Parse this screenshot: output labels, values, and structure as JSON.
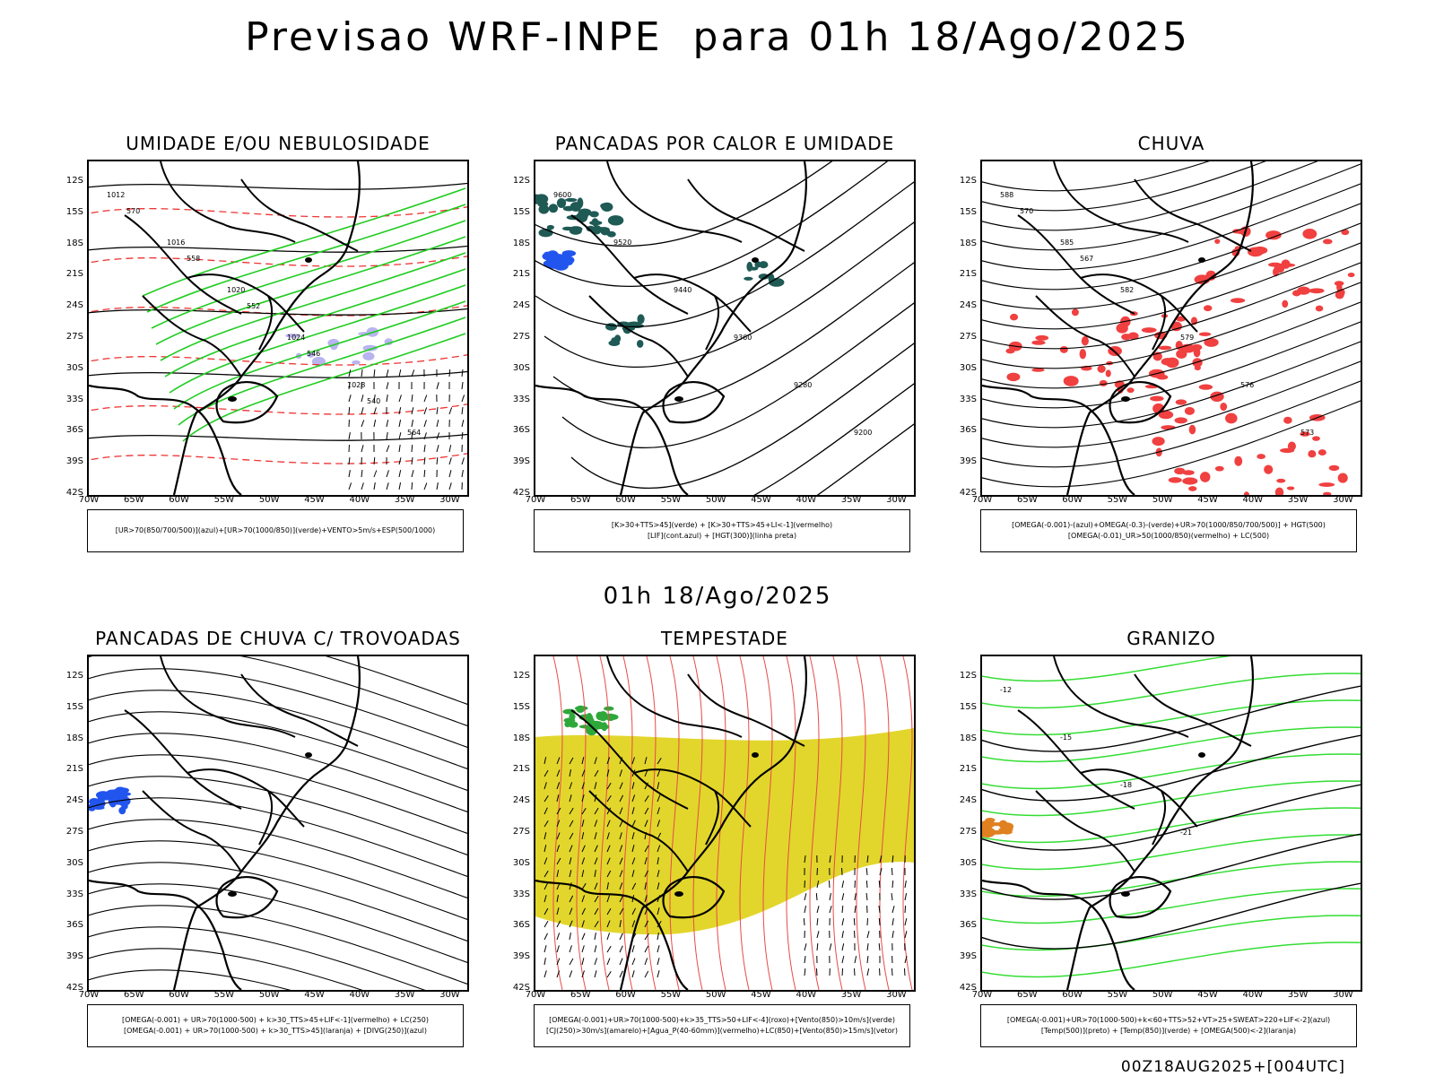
{
  "header": {
    "title": "Previsao WRF-INPE  para 01h 18/Ago/2025",
    "mid_title": "01h 18/Ago/2025",
    "stamp": "00Z18AUG2025+[004UTC]"
  },
  "axes": {
    "lat_ticks": [
      "12S",
      "15S",
      "18S",
      "21S",
      "24S",
      "27S",
      "30S",
      "33S",
      "36S",
      "39S",
      "42S"
    ],
    "lon_ticks": [
      "70W",
      "65W",
      "60W",
      "55W",
      "50W",
      "45W",
      "40W",
      "35W",
      "30W"
    ]
  },
  "colors": {
    "frame": "#000000",
    "humidity_blue": "#b9b3f0",
    "humidity_green": "#22cc22",
    "thickness_red": "#ee3333",
    "dark_teal": "#1f5a55",
    "rain_red": "#f04040",
    "storm_yellow": "#e2d62c",
    "streamline_red": "#e84a4a",
    "hail_green": "#33dd33",
    "lif_blue": "#2255ee",
    "orange": "#e08020"
  },
  "panels": [
    {
      "title": "UMIDADE E/OU NEBULOSIDADE",
      "legend": [
        "[UR>70(850/700/500)](azul)+[UR>70(1000/850)](verde)+VENTO>5m/s+ESP(500/1000)"
      ],
      "contour_labels": [
        "1012",
        "1016",
        "1020",
        "1024",
        "1028",
        "564",
        "570",
        "558",
        "552",
        "546",
        "540"
      ]
    },
    {
      "title": "PANCADAS POR CALOR E UMIDADE",
      "legend": [
        "[K>30+TTS>45](verde) + [K>30+TTS>45+LI<-1](vermelho)",
        "[LIF](cont.azul) + [HGT(300)](linha preta)"
      ],
      "contour_labels": [
        "9600",
        "9520",
        "9440",
        "9360",
        "9280",
        "9200"
      ]
    },
    {
      "title": "CHUVA",
      "legend": [
        "[OMEGA(-0.001)-(azul)+OMEGA(-0.3)-(verde)+UR>70(1000/850/700/500)] + HGT(500)",
        "[OMEGA(-0.01)_UR>50(1000/850)(vermelho) + LC(500)"
      ],
      "contour_labels": [
        "588",
        "585",
        "582",
        "579",
        "576",
        "573",
        "570",
        "567"
      ]
    },
    {
      "title": "PANCADAS DE CHUVA C/ TROVOADAS",
      "legend": [
        "[OMEGA(-0.001) + UR>70(1000-500) + k>30_TTS>45+LIF<-1](vermelho) + LC(250)",
        "[OMEGA(-0.001) + UR>70(1000-500) + k>30_TTS>45](laranja) + [DIVG(250)](azul)"
      ],
      "contour_labels": []
    },
    {
      "title": "TEMPESTADE",
      "legend": [
        "[OMEGA(-0.001)+UR>70(1000-500)+k>35_TTS>50+LIF<-4](roxo)+[Vento(850)>10m/s](verde)",
        "[CJ(250)>30m/s](amarelo)+[Agua_P(40-60mm)](vermelho)+LC(850)+[Vento(850)>15m/s](vetor)"
      ],
      "contour_labels": []
    },
    {
      "title": "GRANIZO",
      "legend": [
        "[OMEGA(-0.001)+UR>70(1000-500)+k<60+TTS>52+VT>25+SWEAT>220+LIF<-2](azul)",
        "[Temp(500)](preto) + [Temp(850)](verde) + [OMEGA(500)<-2](laranja)"
      ],
      "contour_labels": [
        "-12",
        "-15",
        "-18",
        "-21"
      ]
    }
  ]
}
